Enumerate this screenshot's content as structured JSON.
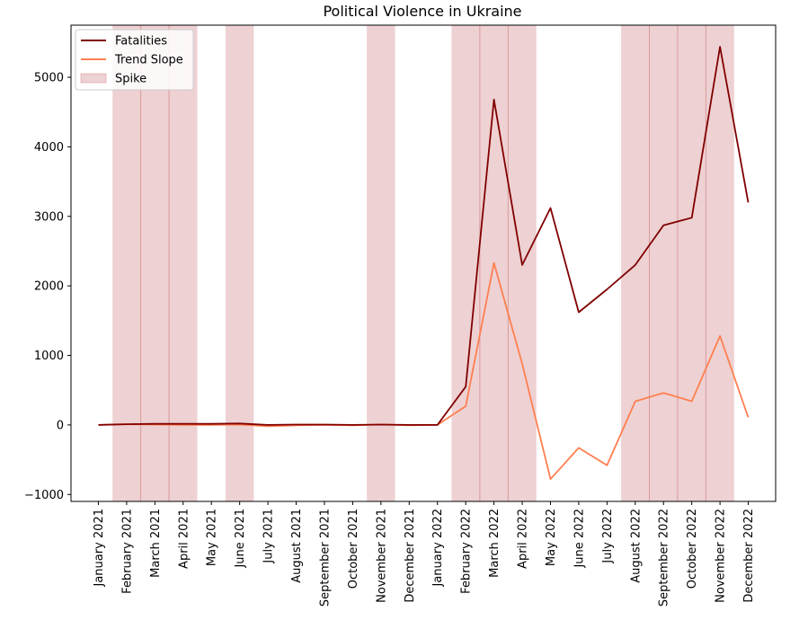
{
  "chart_data": {
    "type": "line",
    "title": "Political Violence in Ukraine",
    "xlabel": "",
    "ylabel": "",
    "categories": [
      "January 2021",
      "February 2021",
      "March 2021",
      "April 2021",
      "May 2021",
      "June 2021",
      "July 2021",
      "August 2021",
      "September 2021",
      "October 2021",
      "November 2021",
      "December 2021",
      "January 2022",
      "February 2022",
      "March 2022",
      "April 2022",
      "May 2022",
      "June 2022",
      "July 2022",
      "August 2022",
      "September 2022",
      "October 2022",
      "November 2022",
      "December 2022"
    ],
    "series": [
      {
        "name": "Fatalities",
        "color": "#800000",
        "values": [
          0,
          10,
          15,
          15,
          15,
          20,
          0,
          5,
          5,
          0,
          5,
          0,
          0,
          550,
          4680,
          2300,
          3120,
          1620,
          1950,
          2300,
          2870,
          2980,
          5440,
          3200
        ]
      },
      {
        "name": "Trend Slope",
        "color": "#ff7f50",
        "values": [
          0,
          10,
          5,
          0,
          0,
          5,
          -20,
          -5,
          0,
          -5,
          5,
          -5,
          0,
          270,
          2330,
          880,
          -780,
          -330,
          -580,
          340,
          460,
          340,
          1280,
          110
        ]
      }
    ],
    "spike_bands": [
      [
        0.5,
        3.5
      ],
      [
        4.5,
        5.5
      ],
      [
        9.5,
        10.5
      ],
      [
        12.5,
        15.5
      ],
      [
        18.5,
        22.5
      ]
    ],
    "spike_dividers": [
      1.5,
      2.5,
      13.5,
      14.5,
      19.5,
      20.5,
      21.5
    ],
    "spike_label": "Spike",
    "spike_color": "#d99a9c",
    "ylim": [
      -1100,
      5750
    ],
    "yticks": [
      -1000,
      0,
      1000,
      2000,
      3000,
      4000,
      5000
    ],
    "ytick_labels": [
      "−1000",
      "0",
      "1000",
      "2000",
      "3000",
      "4000",
      "5000"
    ],
    "legend_position": "upper-left",
    "grid": false
  }
}
